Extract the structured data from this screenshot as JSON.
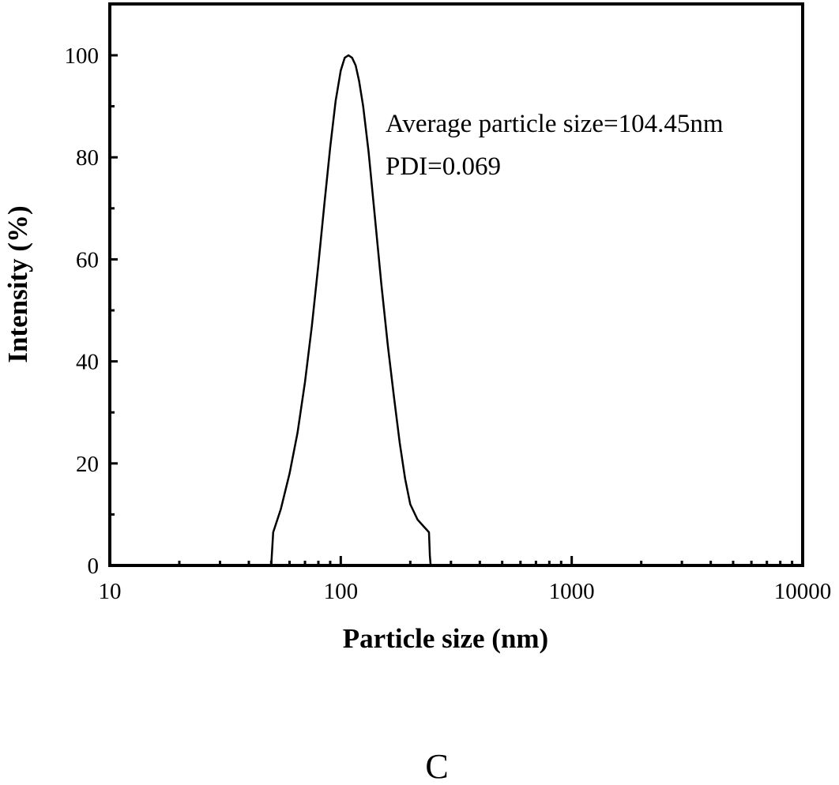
{
  "chart_data": {
    "type": "line",
    "xlabel": "Particle size (nm)",
    "ylabel": "Intensity (%)",
    "xscale": "log",
    "xlim": [
      10,
      10000
    ],
    "ylim": [
      0,
      110
    ],
    "x_ticks": [
      10,
      100,
      1000,
      10000
    ],
    "x_tick_labels": [
      "10",
      "100",
      "1000",
      "10000"
    ],
    "y_ticks": [
      0,
      20,
      40,
      60,
      80,
      100
    ],
    "y_tick_labels": [
      "0",
      "20",
      "40",
      "60",
      "80",
      "100"
    ],
    "grid": false,
    "series": [
      {
        "x": [
          50,
          51,
          55,
          60,
          65,
          70,
          75,
          80,
          85,
          90,
          95,
          100,
          104,
          108,
          112,
          116,
          120,
          125,
          132,
          140,
          150,
          160,
          170,
          180,
          190,
          200,
          215,
          230,
          241,
          243,
          245
        ],
        "y": [
          0,
          6.5,
          11,
          18,
          26,
          36,
          47,
          59,
          71,
          82,
          91,
          97,
          99.5,
          100,
          99.5,
          98,
          95,
          90,
          81,
          69,
          55,
          43,
          33,
          24,
          17,
          12,
          9,
          7.5,
          6.5,
          2,
          0
        ]
      }
    ],
    "annotations": [
      "Average particle size=104.45nm",
      "PDI=0.069"
    ],
    "panel_label": "C"
  }
}
